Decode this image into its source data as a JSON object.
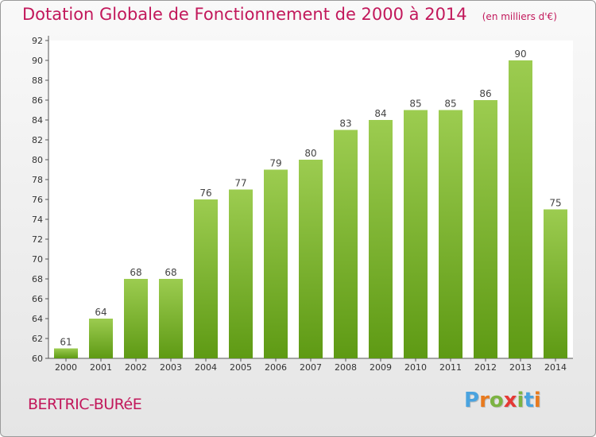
{
  "chart_data": {
    "type": "bar",
    "title": "Dotation Globale de Fonctionnement de 2000 à 2014",
    "subtitle": "(en milliers d'€)",
    "categories": [
      "2000",
      "2001",
      "2002",
      "2003",
      "2004",
      "2005",
      "2006",
      "2007",
      "2008",
      "2009",
      "2010",
      "2011",
      "2012",
      "2013",
      "2014"
    ],
    "values": [
      61,
      64,
      68,
      68,
      76,
      77,
      79,
      80,
      83,
      84,
      85,
      85,
      86,
      90,
      75
    ],
    "ylim": [
      60,
      92
    ],
    "yticks": [
      60,
      62,
      64,
      66,
      68,
      70,
      72,
      74,
      76,
      78,
      80,
      82,
      84,
      86,
      88,
      90,
      92
    ],
    "grid": false,
    "bar_color_top": "#9ccc50",
    "bar_color_bottom": "#5e9a14"
  },
  "footer": {
    "commune": "BERTRIC-BURéE",
    "logo_letters": [
      "P",
      "r",
      "o",
      "x",
      "i",
      "t",
      "i"
    ],
    "logo_colors": [
      "#4aa3df",
      "#e87a1e",
      "#7cb342",
      "#e53935",
      "#7cb342",
      "#4aa3df",
      "#e87a1e"
    ]
  }
}
